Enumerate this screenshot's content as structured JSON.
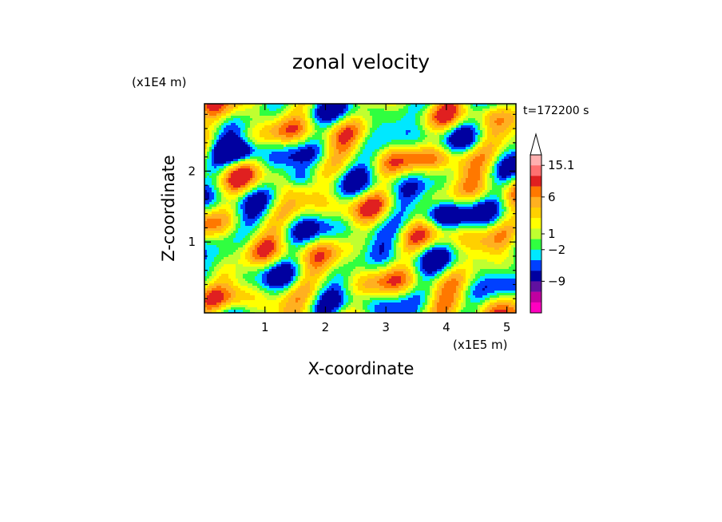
{
  "chart_data": {
    "type": "heatmap",
    "title": "zonal velocity",
    "xlabel": "X-coordinate",
    "ylabel": "Z-coordinate",
    "x_unit": "(x1E5 m)",
    "y_unit": "(x1E4 m)",
    "time_label": "t=172200 s",
    "xlim": [
      0,
      5.15
    ],
    "ylim": [
      0,
      2.95
    ],
    "x_ticks": [
      {
        "value": 1,
        "label": "1"
      },
      {
        "value": 2,
        "label": "2"
      },
      {
        "value": 3,
        "label": "3"
      },
      {
        "value": 4,
        "label": "4"
      },
      {
        "value": 5,
        "label": "5"
      }
    ],
    "y_ticks": [
      {
        "value": 1,
        "label": "1"
      },
      {
        "value": 2,
        "label": "2"
      }
    ],
    "colorbar": {
      "levels_top_to_bottom": [
        {
          "color": "#ffb0b0"
        },
        {
          "color": "#ff7070"
        },
        {
          "color": "#e02020"
        },
        {
          "color": "#ff7800"
        },
        {
          "color": "#ffb020"
        },
        {
          "color": "#ffd000"
        },
        {
          "color": "#ffff00"
        },
        {
          "color": "#c0ff30"
        },
        {
          "color": "#30ff40"
        },
        {
          "color": "#00e8ff"
        },
        {
          "color": "#0040ff"
        },
        {
          "color": "#0000a0"
        },
        {
          "color": "#6010a0"
        },
        {
          "color": "#c000a0"
        },
        {
          "color": "#ff00c0"
        }
      ],
      "labels": [
        {
          "label": "15.1",
          "after_level": 1
        },
        {
          "label": "6",
          "after_level": 4
        },
        {
          "label": "1",
          "after_level": 7.5
        },
        {
          "label": "−2",
          "after_level": 9
        },
        {
          "label": "−9",
          "after_level": 12
        }
      ],
      "max_arrow_color": "#ffffff"
    },
    "colormap": [
      "#ff00c0",
      "#6010a0",
      "#0000a0",
      "#0040ff",
      "#00e8ff",
      "#30ff40",
      "#c0ff30",
      "#ffff00",
      "#ffd000",
      "#ffb020",
      "#ff7800",
      "#e02020"
    ]
  }
}
